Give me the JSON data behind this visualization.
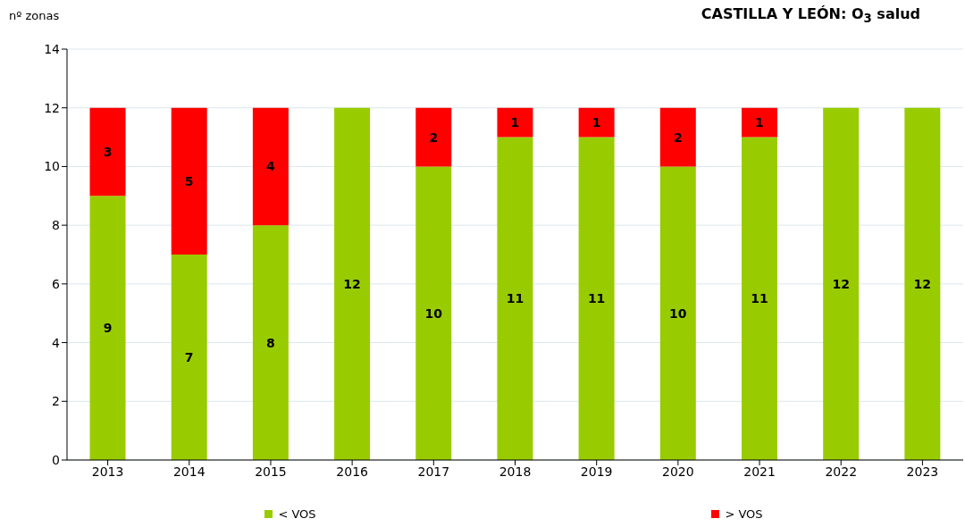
{
  "chart_data": {
    "type": "bar",
    "title": "CASTILLA Y LEÓN: O$_{3}$ salud",
    "ylabel": "nº zonas",
    "categories": [
      "2013",
      "2014",
      "2015",
      "2016",
      "2017",
      "2018",
      "2019",
      "2020",
      "2021",
      "2022",
      "2023"
    ],
    "series": [
      {
        "name": "< VOS",
        "color": "#99cc00",
        "values": [
          9,
          7,
          8,
          12,
          10,
          11,
          11,
          10,
          11,
          12,
          12
        ]
      },
      {
        "name": "> VOS",
        "color": "#ff0000",
        "values": [
          3,
          5,
          4,
          null,
          2,
          1,
          1,
          2,
          1,
          null,
          null
        ]
      }
    ],
    "stacked": true,
    "ylim": [
      0,
      14
    ],
    "yticks": [
      0,
      2,
      4,
      6,
      8,
      10,
      12,
      14
    ],
    "grid": "y",
    "legend": "bottom",
    "data_labels": true
  }
}
